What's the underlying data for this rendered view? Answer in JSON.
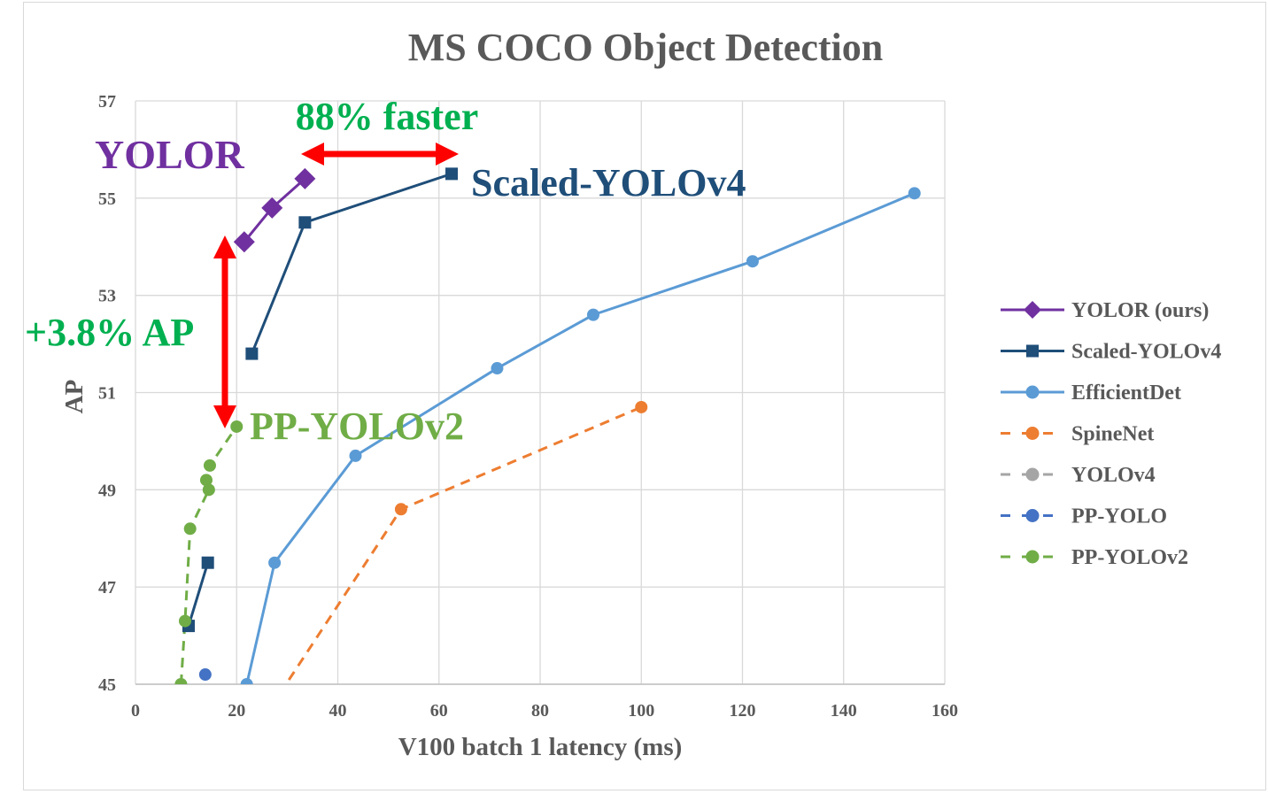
{
  "chart_data": {
    "type": "line",
    "title": "MS COCO Object Detection",
    "xlabel": "V100 batch 1 latency (ms)",
    "ylabel": "AP",
    "xlim": [
      0,
      160
    ],
    "ylim": [
      45,
      57
    ],
    "x_ticks": [
      "0",
      "20",
      "40",
      "60",
      "80",
      "100",
      "120",
      "140",
      "160"
    ],
    "y_ticks": [
      "45",
      "47",
      "49",
      "51",
      "53",
      "55",
      "57"
    ],
    "grid": true,
    "legend_position": "right",
    "series": [
      {
        "name": "YOLOR (ours)",
        "color": "#7030a0",
        "marker": "diamond",
        "dash": "solid",
        "points": [
          [
            21.5,
            54.1
          ],
          [
            27.0,
            54.8
          ],
          [
            33.5,
            55.4
          ]
        ]
      },
      {
        "name": "Scaled-YOLOv4",
        "color": "#1f4e79",
        "marker": "square",
        "dash": "solid",
        "points": [
          [
            10.5,
            46.2
          ],
          [
            14.3,
            47.5
          ]
        ],
        "points_b": [
          [
            23.0,
            51.8
          ],
          [
            33.5,
            54.5
          ],
          [
            62.5,
            55.5
          ]
        ]
      },
      {
        "name": "EfficientDet",
        "color": "#5b9bd5",
        "marker": "circle",
        "dash": "solid",
        "points": [
          [
            22.0,
            45.0
          ],
          [
            27.5,
            47.5
          ],
          [
            43.5,
            49.7
          ],
          [
            71.5,
            51.5
          ],
          [
            90.5,
            52.6
          ],
          [
            122.0,
            53.7
          ],
          [
            154.0,
            55.1
          ]
        ]
      },
      {
        "name": "SpineNet",
        "color": "#ed7d31",
        "marker": "circle",
        "dash": "dashed",
        "points": [
          [
            28.5,
            44.8
          ],
          [
            52.5,
            48.6
          ],
          [
            100.0,
            50.7
          ]
        ]
      },
      {
        "name": "YOLOv4",
        "color": "#a5a5a5",
        "marker": "circle",
        "dash": "dashed",
        "points": []
      },
      {
        "name": "PP-YOLO",
        "color": "#4472c4",
        "marker": "circle",
        "dash": "dashed",
        "points": [
          [
            13.0,
            44.8
          ],
          [
            13.8,
            45.2
          ]
        ]
      },
      {
        "name": "PP-YOLOv2",
        "color": "#70ad47",
        "marker": "circle",
        "dash": "dashed",
        "points": [
          [
            9.0,
            45.0
          ],
          [
            9.8,
            46.3
          ],
          [
            10.8,
            48.2
          ],
          [
            14.5,
            49.0
          ],
          [
            14.0,
            49.2
          ],
          [
            14.7,
            49.5
          ],
          [
            20.0,
            50.3
          ]
        ]
      }
    ],
    "annotations": [
      {
        "text": "88% faster",
        "color": "#00b050"
      },
      {
        "text": "YOLOR",
        "color": "#7030a0"
      },
      {
        "text": "Scaled-YOLOv4",
        "color": "#1f4e79"
      },
      {
        "text": "+3.8% AP",
        "color": "#00b050"
      },
      {
        "text": "PP-YOLOv2",
        "color": "#70ad47"
      }
    ],
    "arrow_color": "#ff0000"
  }
}
